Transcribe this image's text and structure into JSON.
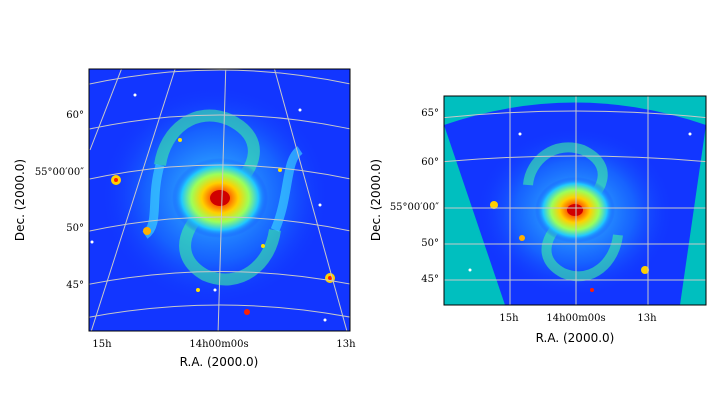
{
  "colors": {
    "galaxy_background": "#1236ff",
    "outside_projection": "#00bfbf",
    "grid": "#c8c8c8",
    "frame": "#000000"
  },
  "left_panel": {
    "xlabel": "R.A. (2000.0)",
    "ylabel": "Dec. (2000.0)",
    "dec_ticks": [
      "60°",
      "55°00′00″",
      "50°",
      "45°"
    ],
    "ra_ticks": [
      "15h",
      "14h00m00s",
      "13h"
    ]
  },
  "right_panel": {
    "xlabel": "R.A. (2000.0)",
    "ylabel": "Dec. (2000.0)",
    "dec_ticks": [
      "65°",
      "60°",
      "55°00′00″",
      "50°",
      "45°"
    ],
    "ra_ticks": [
      "15h",
      "14h00m00s",
      "13h"
    ]
  }
}
